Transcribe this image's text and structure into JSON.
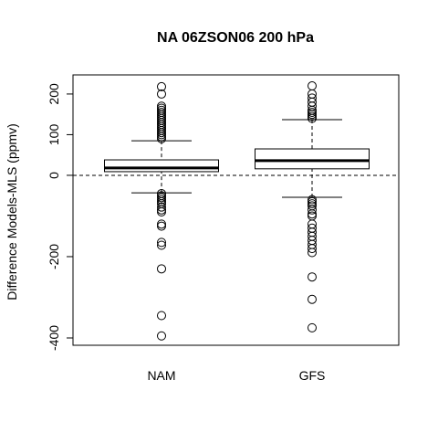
{
  "chart_data": {
    "type": "boxplot",
    "title": "NA 06ZSON06 200 hPa",
    "ylabel": "Difference Models-MLS (ppmv)",
    "categories": [
      "NAM",
      "GFS"
    ],
    "boxes": [
      {
        "whisker_low": -43,
        "q1": 9,
        "median": 18,
        "q3": 38,
        "whisker_high": 85,
        "outliers": [
          90,
          95,
          100,
          105,
          110,
          115,
          120,
          125,
          130,
          135,
          140,
          145,
          150,
          155,
          160,
          165,
          170,
          200,
          218,
          -45,
          -50,
          -55,
          -60,
          -65,
          -70,
          -78,
          -85,
          -90,
          -120,
          -125,
          -165,
          -172,
          -230,
          -345,
          -395
        ]
      },
      {
        "whisker_low": -54,
        "q1": 16,
        "median": 36,
        "q3": 65,
        "whisker_high": 137,
        "outliers": [
          140,
          145,
          150,
          155,
          160,
          170,
          180,
          190,
          200,
          220,
          -60,
          -65,
          -70,
          -75,
          -85,
          -95,
          -100,
          -120,
          -130,
          -140,
          -150,
          -160,
          -170,
          -180,
          -190,
          -250,
          -305,
          -375
        ]
      }
    ],
    "reference_line": 0,
    "ylim": [
      -418,
      247
    ],
    "yticks": [
      -400,
      -200,
      0,
      100,
      200
    ]
  }
}
